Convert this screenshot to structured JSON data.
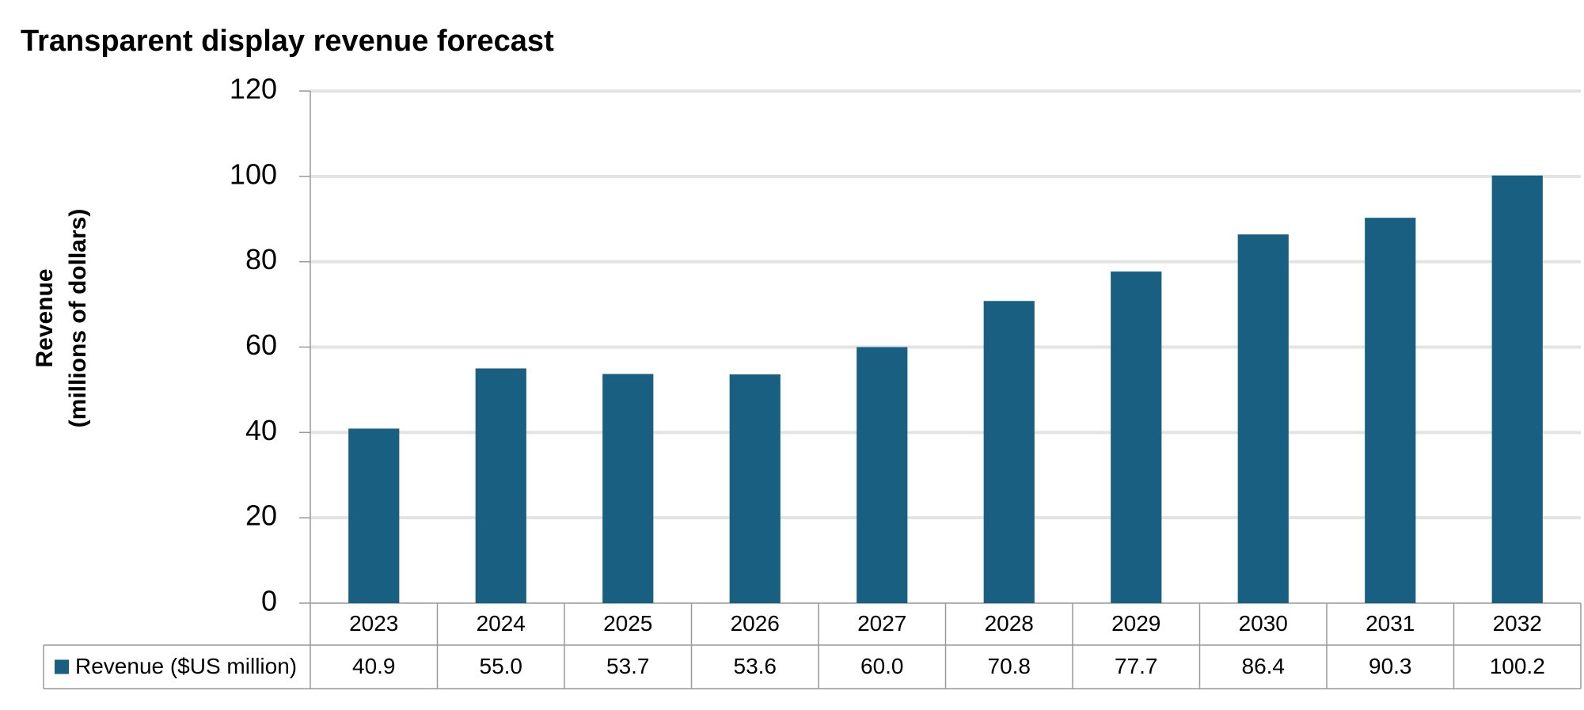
{
  "chart_data": {
    "type": "bar",
    "title": "Transparent display revenue forecast",
    "ylabel": [
      "Revenue",
      "(millions of dollars)"
    ],
    "categories": [
      "2023",
      "2024",
      "2025",
      "2026",
      "2027",
      "2028",
      "2029",
      "2030",
      "2031",
      "2032"
    ],
    "series": [
      {
        "name": "Revenue ($US million)",
        "color": "#195f82",
        "values": [
          40.9,
          55.0,
          53.7,
          53.6,
          60.0,
          70.8,
          77.7,
          86.4,
          90.3,
          100.2
        ],
        "value_labels": [
          "40.9",
          "55.0",
          "53.7",
          "53.6",
          "60.0",
          "70.8",
          "77.7",
          "86.4",
          "90.3",
          "100.2"
        ]
      }
    ],
    "ylim": [
      0,
      120
    ],
    "yticks": [
      0,
      20,
      40,
      60,
      80,
      100,
      120
    ],
    "grid": true,
    "data_table": true
  }
}
